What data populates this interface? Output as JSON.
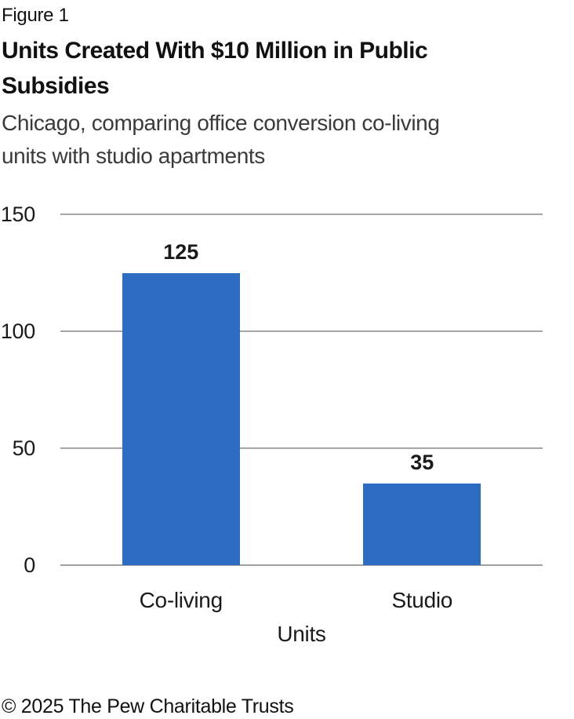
{
  "header": {
    "figure_label": "Figure 1",
    "title_lines": [
      "Units Created With $10 Million in Public",
      "Subsidies"
    ],
    "subtitle_lines": [
      "Chicago, comparing office conversion co-living",
      "units with studio apartments"
    ]
  },
  "chart_data": {
    "type": "bar",
    "title": "Units Created With $10 Million in Public Subsidies",
    "subtitle": "Chicago, comparing office conversion co-living units with studio apartments",
    "categories": [
      "Co-living",
      "Studio"
    ],
    "values": [
      125,
      35
    ],
    "xlabel": "Units",
    "ylabel": "",
    "ylim": [
      0,
      150
    ],
    "yticks": [
      0,
      50,
      100,
      150
    ],
    "grid": true,
    "legend_position": "none",
    "bar_color": "#2D6DC1",
    "gridline_color": "#A6A6A6",
    "axis_line_color": "#A0A0A0"
  },
  "footer": {
    "copyright": "© 2025 The Pew Charitable Trusts"
  }
}
